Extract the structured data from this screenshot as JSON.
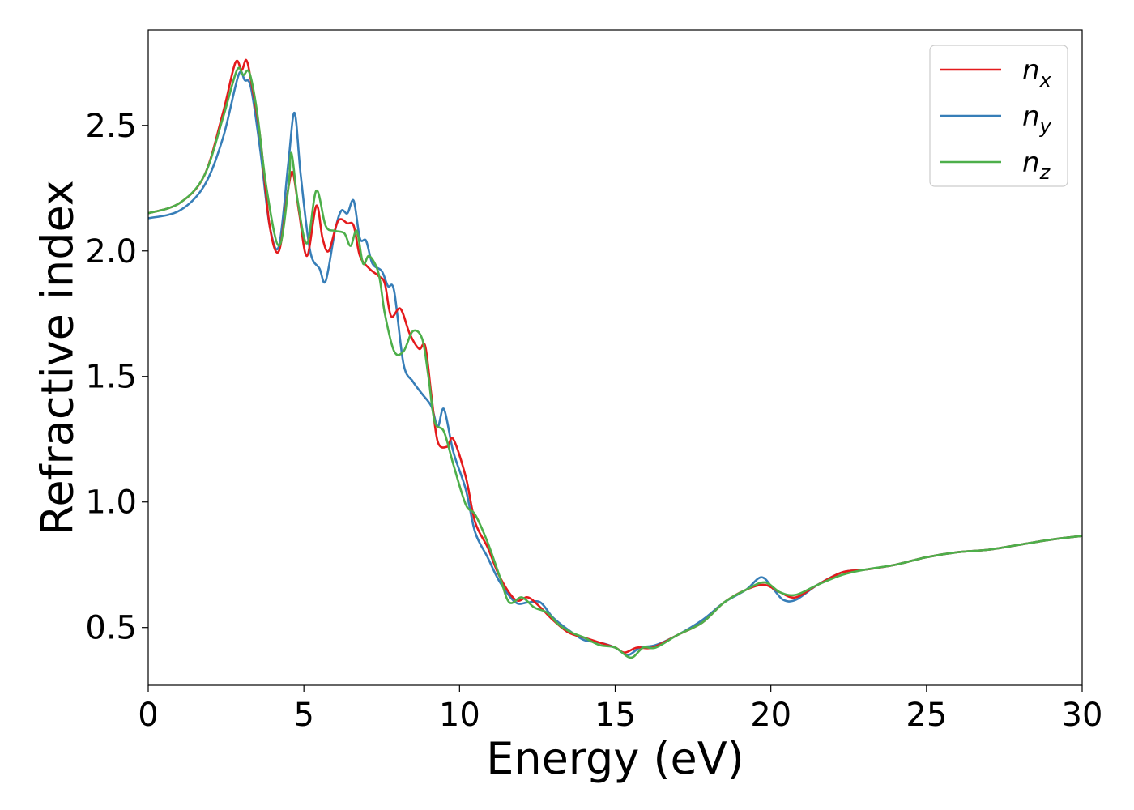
{
  "chart_data": {
    "type": "line",
    "title": "",
    "xlabel": "Energy (eV)",
    "ylabel": "Refractive index",
    "xlim": [
      0,
      30
    ],
    "ylim": [
      0.27,
      2.88
    ],
    "xticks": [
      0,
      5,
      10,
      15,
      20,
      25,
      30
    ],
    "xtick_labels": [
      "0",
      "5",
      "10",
      "15",
      "20",
      "25",
      "30"
    ],
    "yticks": [
      0.5,
      1.0,
      1.5,
      2.0,
      2.5
    ],
    "ytick_labels": [
      "0.5",
      "1.0",
      "1.5",
      "2.0",
      "2.5"
    ],
    "grid": false,
    "legend_position": "top-right",
    "series": [
      {
        "name": "n_x",
        "legend_main": "n",
        "legend_sub": "x",
        "color": "#e41a1c",
        "points": [
          [
            0,
            2.15
          ],
          [
            1,
            2.19
          ],
          [
            1.8,
            2.3
          ],
          [
            2.4,
            2.55
          ],
          [
            2.8,
            2.75
          ],
          [
            3.0,
            2.72
          ],
          [
            3.15,
            2.76
          ],
          [
            3.3,
            2.68
          ],
          [
            3.6,
            2.45
          ],
          [
            3.9,
            2.1
          ],
          [
            4.2,
            2.0
          ],
          [
            4.5,
            2.25
          ],
          [
            4.65,
            2.31
          ],
          [
            4.85,
            2.15
          ],
          [
            5.1,
            1.98
          ],
          [
            5.4,
            2.18
          ],
          [
            5.6,
            2.05
          ],
          [
            5.8,
            2.0
          ],
          [
            6.1,
            2.12
          ],
          [
            6.4,
            2.11
          ],
          [
            6.6,
            2.1
          ],
          [
            6.8,
            1.98
          ],
          [
            7.1,
            1.93
          ],
          [
            7.4,
            1.9
          ],
          [
            7.6,
            1.87
          ],
          [
            7.8,
            1.74
          ],
          [
            8.1,
            1.77
          ],
          [
            8.4,
            1.67
          ],
          [
            8.7,
            1.61
          ],
          [
            8.9,
            1.62
          ],
          [
            9.1,
            1.42
          ],
          [
            9.3,
            1.24
          ],
          [
            9.6,
            1.22
          ],
          [
            9.8,
            1.25
          ],
          [
            10.2,
            1.1
          ],
          [
            10.5,
            0.92
          ],
          [
            10.9,
            0.82
          ],
          [
            11.3,
            0.7
          ],
          [
            11.8,
            0.61
          ],
          [
            12.2,
            0.62
          ],
          [
            12.6,
            0.58
          ],
          [
            13.0,
            0.53
          ],
          [
            13.5,
            0.48
          ],
          [
            14.0,
            0.46
          ],
          [
            14.5,
            0.44
          ],
          [
            15.0,
            0.42
          ],
          [
            15.3,
            0.4
          ],
          [
            15.7,
            0.42
          ],
          [
            16.2,
            0.42
          ],
          [
            17.0,
            0.47
          ],
          [
            17.8,
            0.52
          ],
          [
            18.5,
            0.6
          ],
          [
            19.2,
            0.65
          ],
          [
            19.8,
            0.67
          ],
          [
            20.3,
            0.64
          ],
          [
            20.8,
            0.62
          ],
          [
            21.5,
            0.67
          ],
          [
            22.3,
            0.72
          ],
          [
            23.0,
            0.73
          ],
          [
            24.0,
            0.75
          ],
          [
            25.0,
            0.78
          ],
          [
            26.0,
            0.8
          ],
          [
            27.0,
            0.81
          ],
          [
            28.0,
            0.83
          ],
          [
            29.0,
            0.85
          ],
          [
            30.0,
            0.865
          ]
        ]
      },
      {
        "name": "n_y",
        "legend_main": "n",
        "legend_sub": "y",
        "color": "#377eb8",
        "points": [
          [
            0,
            2.13
          ],
          [
            1,
            2.16
          ],
          [
            1.8,
            2.26
          ],
          [
            2.4,
            2.45
          ],
          [
            2.9,
            2.7
          ],
          [
            3.1,
            2.68
          ],
          [
            3.3,
            2.65
          ],
          [
            3.6,
            2.4
          ],
          [
            3.9,
            2.1
          ],
          [
            4.2,
            2.02
          ],
          [
            4.5,
            2.35
          ],
          [
            4.7,
            2.55
          ],
          [
            4.9,
            2.3
          ],
          [
            5.2,
            2.0
          ],
          [
            5.5,
            1.93
          ],
          [
            5.7,
            1.88
          ],
          [
            6.0,
            2.08
          ],
          [
            6.2,
            2.16
          ],
          [
            6.4,
            2.15
          ],
          [
            6.6,
            2.2
          ],
          [
            6.8,
            2.05
          ],
          [
            7.0,
            2.04
          ],
          [
            7.2,
            1.95
          ],
          [
            7.5,
            1.92
          ],
          [
            7.7,
            1.86
          ],
          [
            7.9,
            1.84
          ],
          [
            8.2,
            1.55
          ],
          [
            8.5,
            1.48
          ],
          [
            8.8,
            1.43
          ],
          [
            9.1,
            1.38
          ],
          [
            9.3,
            1.3
          ],
          [
            9.5,
            1.37
          ],
          [
            9.8,
            1.2
          ],
          [
            10.2,
            1.05
          ],
          [
            10.5,
            0.88
          ],
          [
            10.9,
            0.78
          ],
          [
            11.3,
            0.68
          ],
          [
            11.8,
            0.6
          ],
          [
            12.2,
            0.6
          ],
          [
            12.6,
            0.6
          ],
          [
            13.0,
            0.54
          ],
          [
            13.5,
            0.49
          ],
          [
            14.0,
            0.45
          ],
          [
            14.5,
            0.44
          ],
          [
            15.0,
            0.42
          ],
          [
            15.4,
            0.39
          ],
          [
            15.8,
            0.42
          ],
          [
            16.3,
            0.43
          ],
          [
            17.0,
            0.47
          ],
          [
            17.8,
            0.53
          ],
          [
            18.5,
            0.6
          ],
          [
            19.2,
            0.65
          ],
          [
            19.7,
            0.7
          ],
          [
            20.1,
            0.65
          ],
          [
            20.4,
            0.61
          ],
          [
            20.8,
            0.61
          ],
          [
            21.5,
            0.67
          ],
          [
            22.3,
            0.72
          ],
          [
            23.0,
            0.73
          ],
          [
            24.0,
            0.75
          ],
          [
            25.0,
            0.78
          ],
          [
            26.0,
            0.8
          ],
          [
            27.0,
            0.81
          ],
          [
            28.0,
            0.83
          ],
          [
            29.0,
            0.85
          ],
          [
            30.0,
            0.865
          ]
        ]
      },
      {
        "name": "n_z",
        "legend_main": "n",
        "legend_sub": "z",
        "color": "#4daf4a",
        "points": [
          [
            0,
            2.15
          ],
          [
            1,
            2.19
          ],
          [
            1.8,
            2.3
          ],
          [
            2.4,
            2.53
          ],
          [
            2.85,
            2.72
          ],
          [
            3.05,
            2.7
          ],
          [
            3.25,
            2.71
          ],
          [
            3.5,
            2.55
          ],
          [
            3.8,
            2.25
          ],
          [
            4.2,
            2.02
          ],
          [
            4.5,
            2.25
          ],
          [
            4.6,
            2.39
          ],
          [
            4.8,
            2.2
          ],
          [
            5.1,
            2.03
          ],
          [
            5.4,
            2.24
          ],
          [
            5.7,
            2.1
          ],
          [
            6.0,
            2.08
          ],
          [
            6.3,
            2.07
          ],
          [
            6.5,
            2.02
          ],
          [
            6.7,
            2.08
          ],
          [
            6.9,
            1.95
          ],
          [
            7.1,
            1.98
          ],
          [
            7.4,
            1.91
          ],
          [
            7.6,
            1.75
          ],
          [
            7.9,
            1.6
          ],
          [
            8.2,
            1.6
          ],
          [
            8.5,
            1.68
          ],
          [
            8.8,
            1.65
          ],
          [
            9.0,
            1.5
          ],
          [
            9.2,
            1.32
          ],
          [
            9.5,
            1.28
          ],
          [
            9.8,
            1.15
          ],
          [
            10.2,
            0.99
          ],
          [
            10.5,
            0.95
          ],
          [
            10.9,
            0.84
          ],
          [
            11.3,
            0.7
          ],
          [
            11.6,
            0.6
          ],
          [
            12.0,
            0.62
          ],
          [
            12.4,
            0.58
          ],
          [
            12.8,
            0.56
          ],
          [
            13.2,
            0.51
          ],
          [
            13.6,
            0.48
          ],
          [
            14.0,
            0.46
          ],
          [
            14.5,
            0.43
          ],
          [
            15.0,
            0.42
          ],
          [
            15.5,
            0.38
          ],
          [
            15.9,
            0.42
          ],
          [
            16.3,
            0.42
          ],
          [
            17.0,
            0.47
          ],
          [
            17.8,
            0.52
          ],
          [
            18.5,
            0.6
          ],
          [
            19.2,
            0.65
          ],
          [
            19.8,
            0.68
          ],
          [
            20.3,
            0.64
          ],
          [
            20.8,
            0.63
          ],
          [
            21.5,
            0.67
          ],
          [
            22.3,
            0.71
          ],
          [
            23.0,
            0.73
          ],
          [
            24.0,
            0.75
          ],
          [
            25.0,
            0.78
          ],
          [
            26.0,
            0.8
          ],
          [
            27.0,
            0.81
          ],
          [
            28.0,
            0.83
          ],
          [
            29.0,
            0.85
          ],
          [
            30.0,
            0.865
          ]
        ]
      }
    ]
  }
}
